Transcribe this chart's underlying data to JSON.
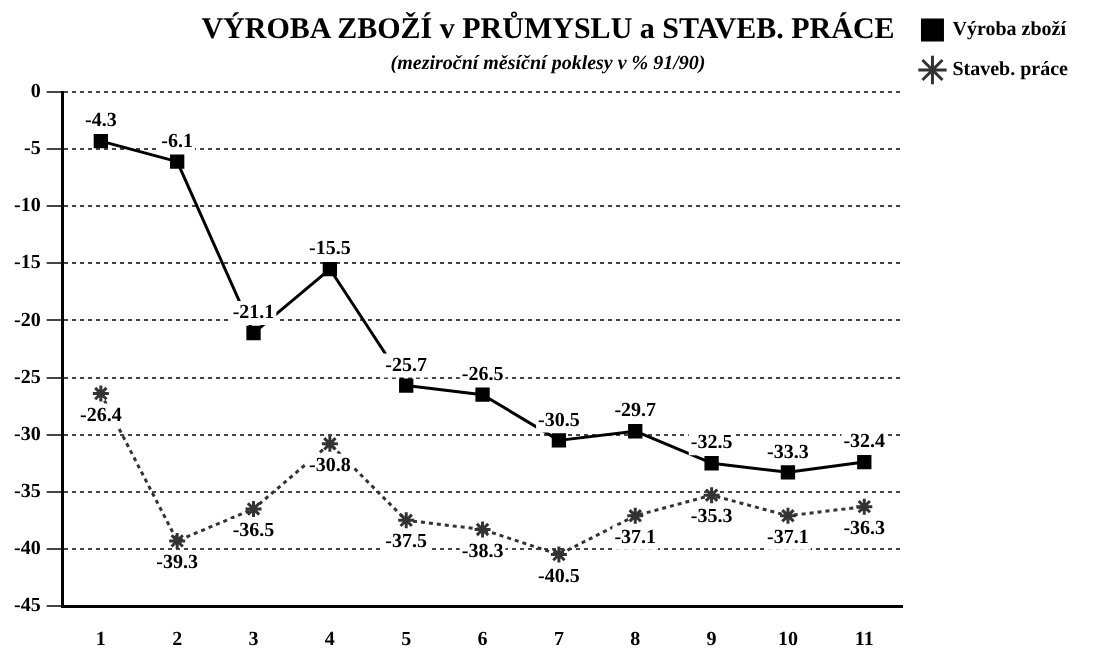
{
  "chart_data": {
    "type": "line",
    "title": "VÝROBA ZBOŽÍ v PRŮMYSLU a STAVEB. PRÁCE",
    "subtitle": "(meziroční měsíční poklesy v % 91/90)",
    "categories": [
      "1",
      "2",
      "3",
      "4",
      "5",
      "6",
      "7",
      "8",
      "9",
      "10",
      "11"
    ],
    "series": [
      {
        "name": "Výroba zboží",
        "color": "#000000",
        "marker": "square",
        "line_style": "solid",
        "values": [
          -4.3,
          -6.1,
          -21.1,
          -15.5,
          -25.7,
          -26.5,
          -30.5,
          -29.7,
          -32.5,
          -33.3,
          -32.4
        ]
      },
      {
        "name": "Staveb. práce",
        "color": "#333333",
        "marker": "cross",
        "line_style": "dotted",
        "values": [
          -26.4,
          -39.3,
          -36.5,
          -30.8,
          -37.5,
          -38.3,
          -40.5,
          -37.1,
          -35.3,
          -37.1,
          -36.3
        ]
      }
    ],
    "ylim": [
      -45,
      0
    ],
    "yticks": [
      -45,
      -40,
      -35,
      -30,
      -25,
      -20,
      -15,
      -10,
      -5,
      0
    ],
    "grid": "y",
    "legend": "right",
    "data_labels": true
  }
}
